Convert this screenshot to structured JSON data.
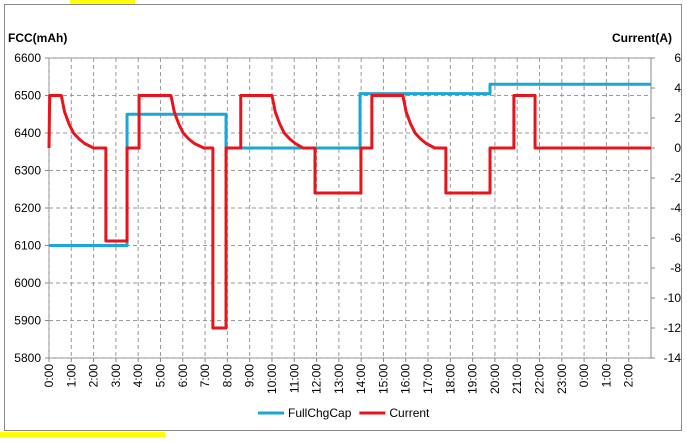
{
  "chart_data": {
    "type": "line",
    "y_label": "FCC(mAh)",
    "y2_label": "Current(A)",
    "xlim": [
      0,
      27
    ],
    "ylim": [
      5800,
      6600
    ],
    "y2lim": [
      -14,
      6
    ],
    "yticks": [
      5800,
      5900,
      6000,
      6100,
      6200,
      6300,
      6400,
      6500,
      6600
    ],
    "y2ticks": [
      -14,
      -12,
      -10,
      -8,
      -6,
      -4,
      -2,
      0,
      2,
      4,
      6
    ],
    "xticks": [
      {
        "value": 0,
        "label": "0:00"
      },
      {
        "value": 1,
        "label": "1:00"
      },
      {
        "value": 2,
        "label": "2:00"
      },
      {
        "value": 3,
        "label": "3:00"
      },
      {
        "value": 4,
        "label": "4:00"
      },
      {
        "value": 5,
        "label": "5:00"
      },
      {
        "value": 6,
        "label": "6:00"
      },
      {
        "value": 7,
        "label": "7:00"
      },
      {
        "value": 8,
        "label": "8:00"
      },
      {
        "value": 9,
        "label": "9:00"
      },
      {
        "value": 10,
        "label": "10:00"
      },
      {
        "value": 11,
        "label": "11:00"
      },
      {
        "value": 12,
        "label": "12:00"
      },
      {
        "value": 13,
        "label": "13:00"
      },
      {
        "value": 14,
        "label": "14:00"
      },
      {
        "value": 15,
        "label": "15:00"
      },
      {
        "value": 16,
        "label": "16:00"
      },
      {
        "value": 17,
        "label": "17:00"
      },
      {
        "value": 18,
        "label": "18:00"
      },
      {
        "value": 19,
        "label": "19:00"
      },
      {
        "value": 20,
        "label": "20:00"
      },
      {
        "value": 21,
        "label": "21:00"
      },
      {
        "value": 22,
        "label": "22:00"
      },
      {
        "value": 23,
        "label": "23:00"
      },
      {
        "value": 24,
        "label": "0:00"
      },
      {
        "value": 25,
        "label": "1:00"
      },
      {
        "value": 26,
        "label": "2:00"
      }
    ],
    "grid": true,
    "legend": "bottom",
    "series": [
      {
        "name": "FullChgCap",
        "color": "#1aa6d6",
        "x": [
          0,
          3.5,
          3.5,
          7.94,
          7.94,
          13.95,
          13.95,
          19.78,
          19.78,
          27
        ],
        "values": [
          6100,
          6100,
          6450,
          6450,
          6360,
          6360,
          6505,
          6505,
          6530,
          6530
        ]
      },
      {
        "name": "Current",
        "color": "#e8141c",
        "axis": "y2",
        "x": [
          0,
          0.03,
          0.55,
          0.7,
          0.9,
          1.1,
          1.35,
          1.6,
          2.0,
          2.55,
          2.55,
          3.5,
          3.5,
          4.04,
          4.04,
          5.47,
          5.62,
          5.82,
          6.02,
          6.27,
          6.52,
          6.95,
          7.35,
          7.35,
          7.94,
          7.94,
          8.6,
          8.6,
          10.0,
          10.15,
          10.35,
          10.55,
          10.8,
          11.05,
          11.4,
          11.93,
          11.93,
          13.99,
          13.99,
          14.48,
          14.48,
          15.87,
          16.02,
          16.22,
          16.42,
          16.67,
          16.92,
          17.3,
          17.8,
          17.8,
          19.78,
          19.78,
          20.85,
          20.85,
          21.8,
          21.8,
          27
        ],
        "values": [
          0,
          3.5,
          3.5,
          2.4,
          1.6,
          1.0,
          0.6,
          0.3,
          0,
          0,
          -6.2,
          -6.2,
          0,
          0,
          3.5,
          3.5,
          2.4,
          1.6,
          1.0,
          0.6,
          0.3,
          0,
          0,
          -12,
          -12,
          0,
          0,
          3.5,
          3.5,
          2.4,
          1.6,
          1.0,
          0.6,
          0.3,
          0,
          0,
          -3,
          -3,
          0,
          0,
          3.5,
          3.5,
          2.4,
          1.6,
          1.0,
          0.6,
          0.3,
          0,
          0,
          -3,
          -3,
          0,
          0,
          3.5,
          3.5,
          0,
          0
        ]
      }
    ]
  }
}
